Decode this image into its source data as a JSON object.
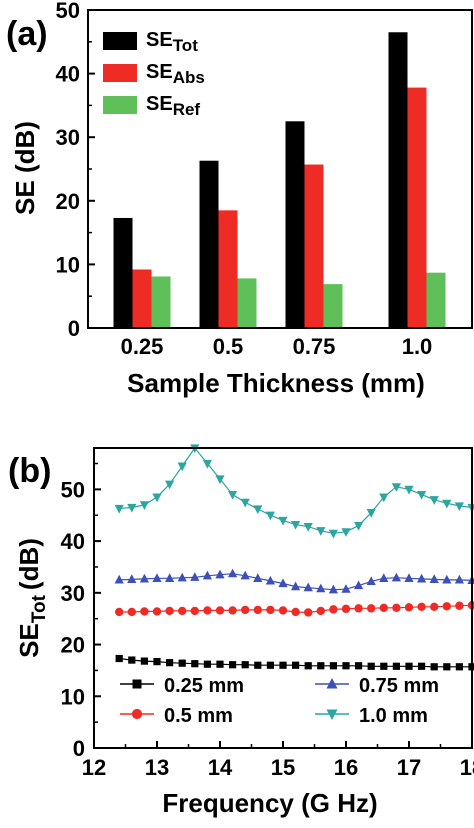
{
  "chart_data": [
    {
      "panel_label": "(a)",
      "type": "bar",
      "categories": [
        "0.25",
        "0.5",
        "0.75",
        "1.0"
      ],
      "series": [
        {
          "name": "SE",
          "subscript": "Tot",
          "color": "#000000",
          "values": [
            17.3,
            26.3,
            32.5,
            46.5
          ]
        },
        {
          "name": "SE",
          "subscript": "Abs",
          "color": "#ee2b25",
          "values": [
            9.2,
            18.5,
            25.7,
            37.8
          ]
        },
        {
          "name": "SE",
          "subscript": "Ref",
          "color": "#5fc05a",
          "values": [
            8.1,
            7.8,
            6.9,
            8.7
          ]
        }
      ],
      "xlabel": "Sample Thickness (mm)",
      "ylabel": "SE (dB)",
      "ylim": [
        0,
        50
      ],
      "yticks": [
        "0",
        "10",
        "20",
        "30",
        "40",
        "50"
      ],
      "grid": false,
      "legend_position": "top-left"
    },
    {
      "panel_label": "(b)",
      "type": "line",
      "x": [
        12.4,
        12.6,
        12.8,
        13.0,
        13.2,
        13.4,
        13.6,
        13.8,
        14.0,
        14.2,
        14.4,
        14.6,
        14.8,
        15.0,
        15.2,
        15.4,
        15.6,
        15.8,
        16.0,
        16.2,
        16.4,
        16.6,
        16.8,
        17.0,
        17.2,
        17.4,
        17.6,
        17.8,
        18.0
      ],
      "series": [
        {
          "name": "0.25 mm",
          "color": "#000000",
          "marker": "square",
          "values": [
            17.3,
            17.0,
            16.8,
            16.7,
            16.5,
            16.4,
            16.3,
            16.2,
            16.2,
            16.1,
            16.1,
            16.0,
            16.0,
            16.0,
            16.0,
            15.9,
            15.9,
            15.9,
            15.9,
            15.9,
            15.8,
            15.8,
            15.8,
            15.8,
            15.8,
            15.7,
            15.7,
            15.7,
            15.7
          ]
        },
        {
          "name": "0.5 mm",
          "color": "#ee2b25",
          "marker": "circle",
          "values": [
            26.3,
            26.3,
            26.4,
            26.4,
            26.5,
            26.5,
            26.5,
            26.6,
            26.6,
            26.6,
            26.7,
            26.7,
            26.7,
            26.6,
            26.3,
            26.2,
            26.5,
            26.8,
            26.9,
            27.0,
            27.0,
            27.1,
            27.1,
            27.2,
            27.3,
            27.3,
            27.4,
            27.5,
            27.6
          ]
        },
        {
          "name": "0.75 mm",
          "color": "#3d4fb8",
          "marker": "triangle-up",
          "values": [
            32.5,
            32.6,
            32.7,
            32.8,
            32.8,
            32.9,
            33.0,
            33.3,
            33.5,
            33.7,
            33.3,
            32.8,
            32.3,
            31.8,
            31.2,
            31.0,
            30.8,
            30.6,
            30.7,
            31.4,
            32.2,
            32.8,
            32.9,
            32.8,
            32.7,
            32.6,
            32.5,
            32.5,
            32.4
          ]
        },
        {
          "name": "1.0 mm",
          "color": "#2ca6a0",
          "marker": "triangle-down",
          "values": [
            46.3,
            46.5,
            47.0,
            48.5,
            51.0,
            54.5,
            58.0,
            55.0,
            52.0,
            49.0,
            47.5,
            46.2,
            45.0,
            44.0,
            43.2,
            42.8,
            42.0,
            41.5,
            41.8,
            43.0,
            45.5,
            48.5,
            50.5,
            50.0,
            49.0,
            48.0,
            47.3,
            46.8,
            46.5
          ]
        }
      ],
      "xlabel": "Frequency (G Hz)",
      "ylabel": "SE",
      "ylabel_subscript": "Tot",
      "ylabel_unit": "(dB)",
      "xlim": [
        12,
        18
      ],
      "ylim": [
        0,
        58
      ],
      "xticks": [
        "12",
        "13",
        "14",
        "15",
        "16",
        "17",
        "18"
      ],
      "yticks": [
        "0",
        "10",
        "20",
        "30",
        "40",
        "50"
      ],
      "grid": false,
      "legend_position": "bottom"
    }
  ]
}
